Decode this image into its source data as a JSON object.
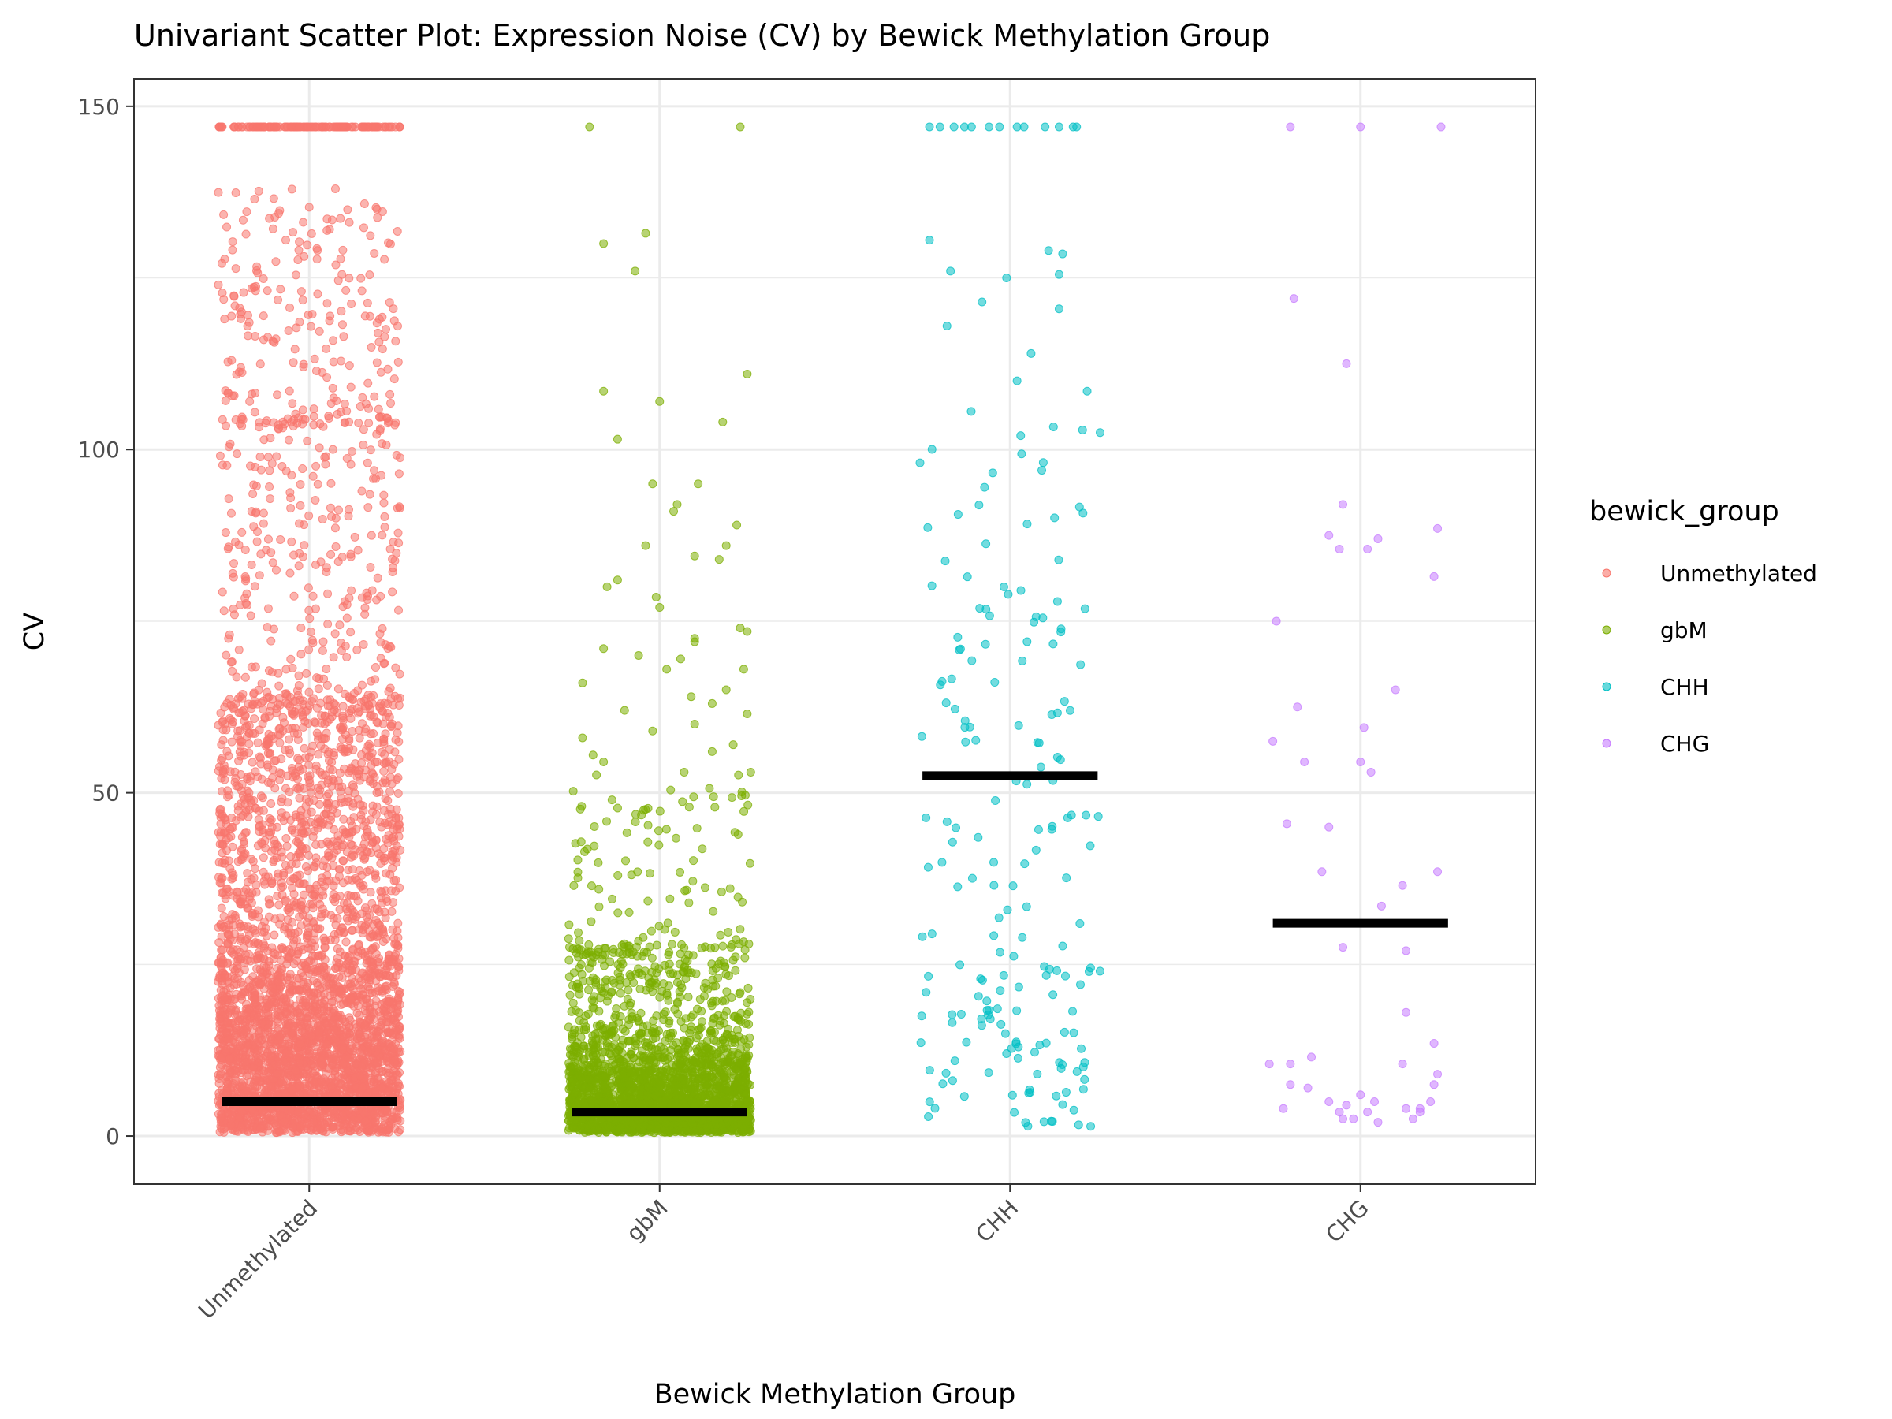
{
  "chart_data": {
    "type": "scatter",
    "title": "Univariant Scatter Plot: Expression Noise (CV) by Bewick Methylation Group",
    "xlabel": "Bewick Methylation Group",
    "ylabel": "CV",
    "categories": [
      "Unmethylated",
      "gbM",
      "CHH",
      "CHG"
    ],
    "ylim": [
      -7,
      154
    ],
    "yticks": [
      0,
      50,
      100,
      150
    ],
    "grid": true,
    "legend": {
      "title": "bewick_group",
      "position": "right",
      "entries": [
        "Unmethylated",
        "gbM",
        "CHH",
        "CHG"
      ]
    },
    "colors": {
      "Unmethylated": "#F8766D",
      "gbM": "#7CAE00",
      "CHH": "#00BFC4",
      "CHG": "#C77CFF",
      "mean": "#000000"
    },
    "series": [
      {
        "name": "Unmethylated",
        "n_approx": 6000,
        "cap_value": 147,
        "mean": 5
      },
      {
        "name": "gbM",
        "n_approx": 3500,
        "cap_value": 147,
        "mean": 3.5,
        "points": [
          {
            "dx": -0.2,
            "y": 147
          },
          {
            "dx": 0.23,
            "y": 147
          },
          {
            "dx": -0.16,
            "y": 130
          },
          {
            "dx": -0.04,
            "y": 131.5
          },
          {
            "dx": -0.07,
            "y": 126
          },
          {
            "dx": 0.25,
            "y": 111
          },
          {
            "dx": -0.16,
            "y": 108.5
          },
          {
            "dx": 0.0,
            "y": 107
          },
          {
            "dx": 0.18,
            "y": 104
          },
          {
            "dx": -0.12,
            "y": 101.5
          },
          {
            "dx": -0.02,
            "y": 95
          },
          {
            "dx": 0.11,
            "y": 95
          },
          {
            "dx": 0.05,
            "y": 92
          },
          {
            "dx": 0.04,
            "y": 91
          },
          {
            "dx": 0.22,
            "y": 89
          },
          {
            "dx": 0.19,
            "y": 86
          },
          {
            "dx": -0.04,
            "y": 86
          },
          {
            "dx": 0.1,
            "y": 84.5
          },
          {
            "dx": 0.17,
            "y": 84
          },
          {
            "dx": -0.12,
            "y": 81
          },
          {
            "dx": -0.15,
            "y": 80
          },
          {
            "dx": -0.01,
            "y": 78.5
          },
          {
            "dx": 0.0,
            "y": 77
          },
          {
            "dx": 0.23,
            "y": 74
          },
          {
            "dx": 0.25,
            "y": 73.5
          },
          {
            "dx": 0.1,
            "y": 72.5
          },
          {
            "dx": 0.1,
            "y": 72
          },
          {
            "dx": -0.16,
            "y": 71
          },
          {
            "dx": -0.06,
            "y": 70
          },
          {
            "dx": 0.06,
            "y": 69.5
          },
          {
            "dx": 0.02,
            "y": 68
          },
          {
            "dx": 0.24,
            "y": 68
          },
          {
            "dx": -0.22,
            "y": 66
          },
          {
            "dx": 0.19,
            "y": 65
          },
          {
            "dx": 0.09,
            "y": 64
          },
          {
            "dx": 0.15,
            "y": 63
          },
          {
            "dx": -0.1,
            "y": 62
          },
          {
            "dx": 0.25,
            "y": 61.5
          },
          {
            "dx": 0.1,
            "y": 60
          },
          {
            "dx": -0.02,
            "y": 59
          },
          {
            "dx": -0.22,
            "y": 58
          },
          {
            "dx": 0.21,
            "y": 57
          },
          {
            "dx": 0.15,
            "y": 56
          },
          {
            "dx": -0.19,
            "y": 55.5
          },
          {
            "dx": -0.16,
            "y": 54.5
          },
          {
            "dx": 0.07,
            "y": 53
          },
          {
            "dx": 0.26,
            "y": 53
          }
        ]
      },
      {
        "name": "CHH",
        "n_approx": 230,
        "cap_value": 147,
        "mean": 52.5,
        "points": [
          {
            "dx": -0.23,
            "y": 147
          },
          {
            "dx": -0.2,
            "y": 147
          },
          {
            "dx": -0.16,
            "y": 147
          },
          {
            "dx": -0.13,
            "y": 147
          },
          {
            "dx": -0.11,
            "y": 147
          },
          {
            "dx": -0.06,
            "y": 147
          },
          {
            "dx": -0.03,
            "y": 147
          },
          {
            "dx": 0.02,
            "y": 147
          },
          {
            "dx": 0.04,
            "y": 147
          },
          {
            "dx": 0.1,
            "y": 147
          },
          {
            "dx": 0.14,
            "y": 147
          },
          {
            "dx": 0.18,
            "y": 147
          },
          {
            "dx": 0.19,
            "y": 147
          },
          {
            "dx": -0.23,
            "y": 130.5
          },
          {
            "dx": 0.11,
            "y": 129
          },
          {
            "dx": 0.15,
            "y": 128.5
          },
          {
            "dx": -0.17,
            "y": 126
          },
          {
            "dx": 0.14,
            "y": 125.5
          },
          {
            "dx": -0.01,
            "y": 125
          },
          {
            "dx": -0.08,
            "y": 121.5
          },
          {
            "dx": 0.14,
            "y": 120.5
          },
          {
            "dx": -0.18,
            "y": 118
          },
          {
            "dx": 0.06,
            "y": 114
          },
          {
            "dx": 0.02,
            "y": 110
          },
          {
            "dx": 0.22,
            "y": 108.5
          }
        ]
      },
      {
        "name": "CHG",
        "n_approx": 55,
        "cap_value": 147,
        "mean": 31,
        "points": [
          {
            "dx": -0.2,
            "y": 147
          },
          {
            "dx": 0.0,
            "y": 147
          },
          {
            "dx": 0.23,
            "y": 147
          },
          {
            "dx": -0.19,
            "y": 122
          },
          {
            "dx": -0.04,
            "y": 112.5
          },
          {
            "dx": -0.05,
            "y": 92
          },
          {
            "dx": -0.09,
            "y": 87.5
          },
          {
            "dx": 0.05,
            "y": 87
          },
          {
            "dx": 0.22,
            "y": 88.5
          },
          {
            "dx": -0.06,
            "y": 85.5
          },
          {
            "dx": 0.02,
            "y": 85.5
          },
          {
            "dx": 0.21,
            "y": 81.5
          },
          {
            "dx": -0.24,
            "y": 75
          },
          {
            "dx": 0.1,
            "y": 65
          },
          {
            "dx": -0.18,
            "y": 62.5
          },
          {
            "dx": 0.01,
            "y": 59.5
          },
          {
            "dx": -0.25,
            "y": 57.5
          },
          {
            "dx": -0.16,
            "y": 54.5
          },
          {
            "dx": 0.0,
            "y": 54.5
          },
          {
            "dx": 0.03,
            "y": 53
          },
          {
            "dx": -0.21,
            "y": 45.5
          },
          {
            "dx": -0.09,
            "y": 45
          },
          {
            "dx": -0.11,
            "y": 38.5
          },
          {
            "dx": 0.22,
            "y": 38.5
          },
          {
            "dx": 0.12,
            "y": 36.5
          },
          {
            "dx": 0.06,
            "y": 33.5
          },
          {
            "dx": -0.05,
            "y": 27.5
          },
          {
            "dx": 0.13,
            "y": 27
          },
          {
            "dx": 0.13,
            "y": 18
          },
          {
            "dx": 0.21,
            "y": 13.5
          },
          {
            "dx": -0.26,
            "y": 10.5
          },
          {
            "dx": -0.2,
            "y": 10.5
          },
          {
            "dx": -0.14,
            "y": 11.5
          },
          {
            "dx": 0.12,
            "y": 10.5
          },
          {
            "dx": 0.22,
            "y": 9
          },
          {
            "dx": 0.21,
            "y": 7.5
          },
          {
            "dx": -0.15,
            "y": 7
          },
          {
            "dx": -0.2,
            "y": 7.5
          },
          {
            "dx": -0.09,
            "y": 5
          },
          {
            "dx": 0.0,
            "y": 6
          },
          {
            "dx": -0.04,
            "y": 4.5
          },
          {
            "dx": 0.04,
            "y": 5
          },
          {
            "dx": 0.2,
            "y": 5
          },
          {
            "dx": 0.17,
            "y": 4
          },
          {
            "dx": -0.22,
            "y": 4
          },
          {
            "dx": -0.06,
            "y": 3.5
          },
          {
            "dx": 0.02,
            "y": 3.5
          },
          {
            "dx": -0.05,
            "y": 2.5
          },
          {
            "dx": -0.02,
            "y": 2.5
          },
          {
            "dx": 0.05,
            "y": 2
          },
          {
            "dx": 0.15,
            "y": 2.5
          },
          {
            "dx": 0.17,
            "y": 3.5
          },
          {
            "dx": 0.13,
            "y": 4
          }
        ]
      }
    ]
  }
}
